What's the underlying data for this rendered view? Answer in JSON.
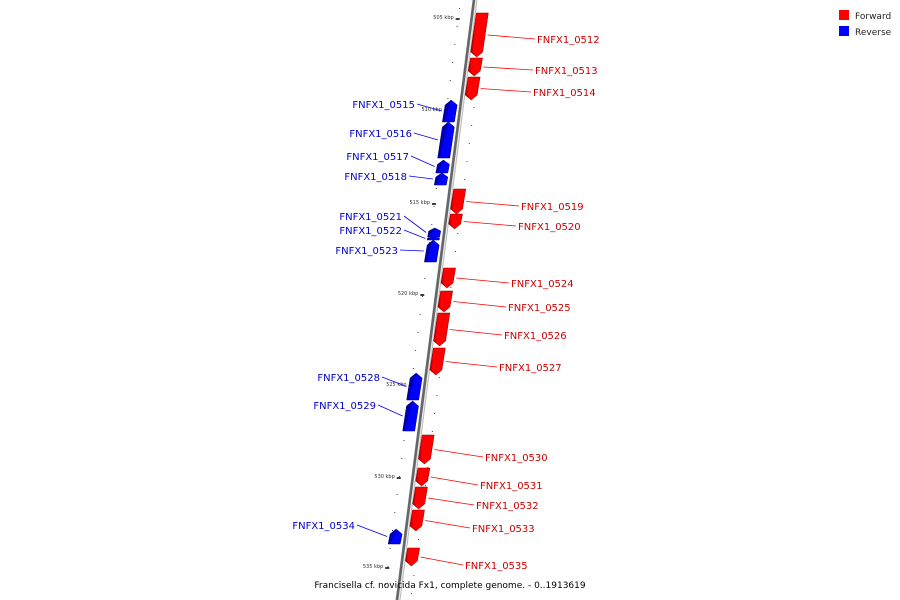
{
  "legend": {
    "forward_label": "Forward",
    "reverse_label": "Reverse",
    "forward_color": "#ff0000",
    "reverse_color": "#0000ff"
  },
  "caption": "Francisella cf. novicida Fx1, complete genome. - 0..1913619",
  "ticks": [
    {
      "label": "505 kbp",
      "kbp": 505
    },
    {
      "label": "510 kbp",
      "kbp": 510
    },
    {
      "label": "515 kbp",
      "kbp": 515
    },
    {
      "label": "520 kbp",
      "kbp": 520
    },
    {
      "label": "525 kbp",
      "kbp": 525
    },
    {
      "label": "530 kbp",
      "kbp": 530
    },
    {
      "label": "535 kbp",
      "kbp": 535
    }
  ],
  "genes": [
    {
      "name": "FNFX1_0512",
      "strand": "forward"
    },
    {
      "name": "FNFX1_0513",
      "strand": "forward"
    },
    {
      "name": "FNFX1_0514",
      "strand": "forward"
    },
    {
      "name": "FNFX1_0515",
      "strand": "reverse"
    },
    {
      "name": "FNFX1_0516",
      "strand": "reverse"
    },
    {
      "name": "FNFX1_0517",
      "strand": "reverse"
    },
    {
      "name": "FNFX1_0518",
      "strand": "reverse"
    },
    {
      "name": "FNFX1_0519",
      "strand": "forward"
    },
    {
      "name": "FNFX1_0520",
      "strand": "forward"
    },
    {
      "name": "FNFX1_0521",
      "strand": "reverse"
    },
    {
      "name": "FNFX1_0522",
      "strand": "reverse"
    },
    {
      "name": "FNFX1_0523",
      "strand": "reverse"
    },
    {
      "name": "FNFX1_0524",
      "strand": "forward"
    },
    {
      "name": "FNFX1_0525",
      "strand": "forward"
    },
    {
      "name": "FNFX1_0526",
      "strand": "forward"
    },
    {
      "name": "FNFX1_0527",
      "strand": "forward"
    },
    {
      "name": "FNFX1_0528",
      "strand": "reverse"
    },
    {
      "name": "FNFX1_0529",
      "strand": "reverse"
    },
    {
      "name": "FNFX1_0530",
      "strand": "forward"
    },
    {
      "name": "FNFX1_0531",
      "strand": "forward"
    },
    {
      "name": "FNFX1_0532",
      "strand": "forward"
    },
    {
      "name": "FNFX1_0533",
      "strand": "forward"
    },
    {
      "name": "FNFX1_0534",
      "strand": "reverse"
    },
    {
      "name": "FNFX1_0535",
      "strand": "forward"
    }
  ]
}
